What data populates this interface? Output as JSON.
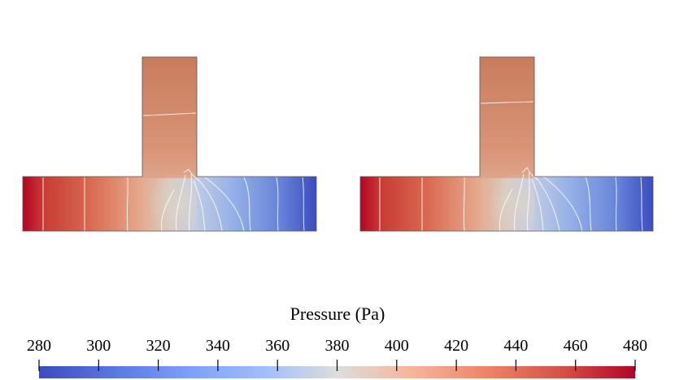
{
  "figure": {
    "panels": [
      {
        "id": "left",
        "description_name": "t-junction-pressure-field-left"
      },
      {
        "id": "right",
        "description_name": "t-junction-pressure-field-right"
      }
    ]
  },
  "colorbar": {
    "title": "Pressure (Pa)",
    "min": 280,
    "max": 480,
    "ticks": [
      "280",
      "300",
      "320",
      "340",
      "360",
      "380",
      "400",
      "420",
      "440",
      "460",
      "480"
    ],
    "colors": {
      "low": "#3b4cc0",
      "mid_low": "#aac7fd",
      "mid": "#dddddd",
      "mid_high": "#f7a889",
      "high": "#b40426"
    }
  }
}
